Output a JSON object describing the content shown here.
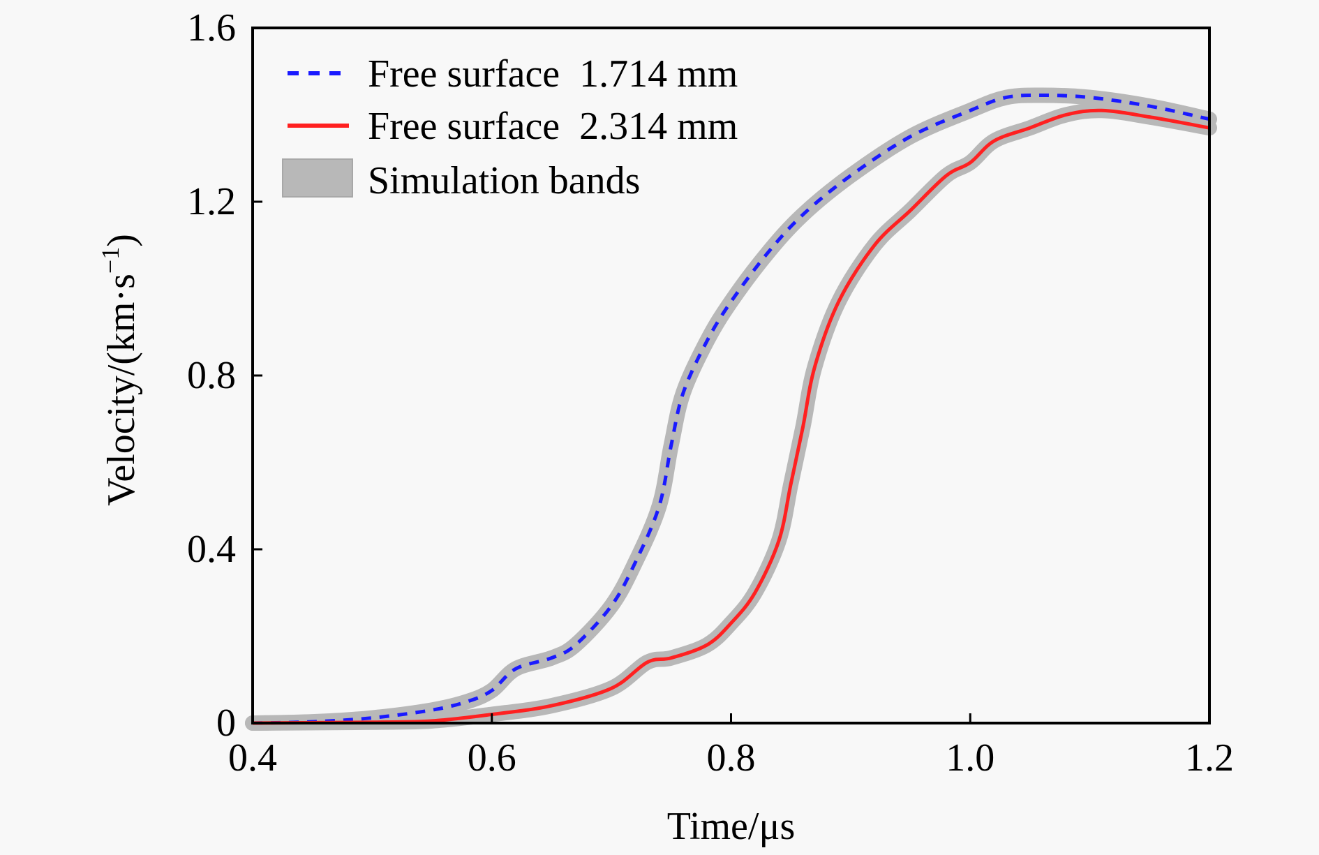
{
  "chart_data": {
    "type": "line",
    "title": "",
    "xlabel": "Time/μs",
    "ylabel_main": "Velocity/(km·s",
    "ylabel_sup": "−1",
    "ylabel_close": ")",
    "xlim": [
      0.4,
      1.2
    ],
    "ylim": [
      0,
      1.6
    ],
    "xticks": [
      0.4,
      0.6,
      0.8,
      1.0,
      1.2
    ],
    "xtick_labels": [
      "0.4",
      "0.6",
      "0.8",
      "1.0",
      "1.2"
    ],
    "yticks": [
      0,
      0.4,
      0.8,
      1.2,
      1.6
    ],
    "ytick_labels": [
      "0",
      "0.4",
      "0.8",
      "1.2",
      "1.6"
    ],
    "grid": false,
    "legend_position": "top-left",
    "series": [
      {
        "name": "Free surface  1.714 mm",
        "style": "dashed",
        "color": "#1a1aff",
        "x": [
          0.4,
          0.45,
          0.5,
          0.55,
          0.58,
          0.6,
          0.62,
          0.65,
          0.67,
          0.7,
          0.72,
          0.74,
          0.75,
          0.76,
          0.78,
          0.8,
          0.83,
          0.86,
          0.9,
          0.95,
          1.0,
          1.03,
          1.06,
          1.1,
          1.15,
          1.2
        ],
        "y": [
          0.0,
          0.003,
          0.012,
          0.03,
          0.05,
          0.075,
          0.125,
          0.15,
          0.18,
          0.27,
          0.37,
          0.5,
          0.64,
          0.76,
          0.88,
          0.97,
          1.08,
          1.17,
          1.26,
          1.35,
          1.41,
          1.44,
          1.445,
          1.44,
          1.42,
          1.39
        ]
      },
      {
        "name": "Free surface  2.314 mm",
        "style": "solid",
        "color": "#ff2020",
        "x": [
          0.4,
          0.5,
          0.55,
          0.6,
          0.65,
          0.7,
          0.73,
          0.75,
          0.78,
          0.8,
          0.82,
          0.84,
          0.85,
          0.86,
          0.87,
          0.89,
          0.92,
          0.95,
          0.98,
          1.0,
          1.02,
          1.05,
          1.08,
          1.11,
          1.15,
          1.2
        ],
        "y": [
          0.0,
          0.002,
          0.005,
          0.02,
          0.04,
          0.08,
          0.14,
          0.15,
          0.18,
          0.23,
          0.3,
          0.42,
          0.55,
          0.68,
          0.82,
          0.97,
          1.1,
          1.18,
          1.26,
          1.29,
          1.34,
          1.37,
          1.4,
          1.41,
          1.395,
          1.37
        ]
      }
    ],
    "band": {
      "name": "Simulation bands",
      "color": "#b8b8b8",
      "half_width_kms": 0.02
    }
  },
  "legend": {
    "items": [
      {
        "label": "Free surface  1.714 mm",
        "marker": "dashed-line-icon"
      },
      {
        "label": "Free surface  2.314 mm",
        "marker": "solid-line-icon"
      },
      {
        "label": "Simulation bands",
        "marker": "gray-patch-icon"
      }
    ]
  }
}
